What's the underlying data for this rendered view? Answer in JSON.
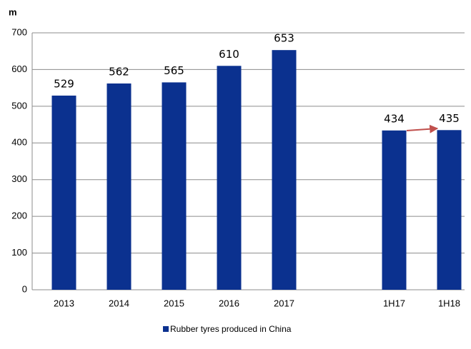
{
  "chart_data": {
    "type": "bar",
    "y_label": "m",
    "categories": [
      "2013",
      "2014",
      "2015",
      "2016",
      "2017",
      null,
      "1H17",
      "1H18"
    ],
    "series": [
      {
        "name": "Rubber tyres produced in China",
        "color": "#0b318f",
        "values": [
          529,
          562,
          565,
          610,
          653,
          null,
          434,
          435
        ]
      }
    ],
    "ylim": [
      0,
      700
    ],
    "yticks": [
      0,
      100,
      200,
      300,
      400,
      500,
      600,
      700
    ],
    "grid": true,
    "legend": "bottom"
  }
}
